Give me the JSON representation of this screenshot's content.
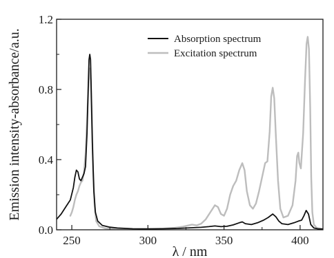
{
  "chart_data": {
    "type": "line",
    "xlabel": "λ / nm",
    "ylabel": "Emission intensity-absorbance/a.u.",
    "xlim": [
      240,
      415
    ],
    "ylim": [
      0,
      1.2
    ],
    "x_ticks": [
      250,
      300,
      350,
      400
    ],
    "x_tick_labels": [
      "250",
      "300",
      "350",
      "400"
    ],
    "y_ticks": [
      0.0,
      0.4,
      0.8,
      1.2
    ],
    "y_tick_labels": [
      "0.0",
      "0.4",
      "0.8",
      "1.2"
    ],
    "grid": false,
    "legend_position": "top-right",
    "series": [
      {
        "name": "Absorption spectrum",
        "color": "#111111",
        "points": [
          [
            240,
            0.06
          ],
          [
            243,
            0.09
          ],
          [
            246,
            0.13
          ],
          [
            249,
            0.17
          ],
          [
            251,
            0.24
          ],
          [
            252,
            0.3
          ],
          [
            253,
            0.34
          ],
          [
            254,
            0.33
          ],
          [
            255,
            0.29
          ],
          [
            256,
            0.28
          ],
          [
            257,
            0.3
          ],
          [
            258,
            0.32
          ],
          [
            259,
            0.36
          ],
          [
            260,
            0.55
          ],
          [
            260.8,
            0.82
          ],
          [
            261.3,
            0.97
          ],
          [
            261.8,
            1.0
          ],
          [
            262.3,
            0.97
          ],
          [
            262.8,
            0.78
          ],
          [
            263.5,
            0.5
          ],
          [
            264.5,
            0.22
          ],
          [
            265.5,
            0.1
          ],
          [
            267,
            0.05
          ],
          [
            270,
            0.025
          ],
          [
            275,
            0.015
          ],
          [
            280,
            0.01
          ],
          [
            290,
            0.006
          ],
          [
            300,
            0.005
          ],
          [
            310,
            0.006
          ],
          [
            320,
            0.008
          ],
          [
            330,
            0.012
          ],
          [
            335,
            0.014
          ],
          [
            340,
            0.018
          ],
          [
            344,
            0.022
          ],
          [
            348,
            0.018
          ],
          [
            352,
            0.02
          ],
          [
            356,
            0.028
          ],
          [
            360,
            0.04
          ],
          [
            362,
            0.045
          ],
          [
            364,
            0.035
          ],
          [
            368,
            0.03
          ],
          [
            372,
            0.04
          ],
          [
            376,
            0.055
          ],
          [
            379,
            0.07
          ],
          [
            382,
            0.09
          ],
          [
            384,
            0.075
          ],
          [
            386,
            0.05
          ],
          [
            388,
            0.035
          ],
          [
            392,
            0.03
          ],
          [
            396,
            0.04
          ],
          [
            399,
            0.05
          ],
          [
            401,
            0.055
          ],
          [
            402.5,
            0.08
          ],
          [
            404,
            0.11
          ],
          [
            405.5,
            0.09
          ],
          [
            407,
            0.03
          ],
          [
            409,
            0.01
          ],
          [
            412,
            0.005
          ],
          [
            415,
            0.004
          ]
        ]
      },
      {
        "name": "Excitation spectrum",
        "color": "#bdbdbd",
        "points": [
          [
            249,
            0.08
          ],
          [
            250,
            0.1
          ],
          [
            251,
            0.13
          ],
          [
            252,
            0.17
          ],
          [
            253,
            0.2
          ],
          [
            254,
            0.22
          ],
          [
            255,
            0.25
          ],
          [
            256,
            0.27
          ],
          [
            257,
            0.28
          ],
          [
            258,
            0.33
          ],
          [
            259,
            0.43
          ],
          [
            260,
            0.62
          ],
          [
            261,
            0.83
          ],
          [
            261.8,
            0.92
          ],
          [
            262.5,
            0.85
          ],
          [
            263.2,
            0.62
          ],
          [
            264,
            0.34
          ],
          [
            265,
            0.14
          ],
          [
            266,
            0.05
          ],
          [
            268,
            0.02
          ],
          [
            272,
            0.008
          ],
          [
            280,
            0.004
          ],
          [
            290,
            0.003
          ],
          [
            300,
            0.004
          ],
          [
            310,
            0.007
          ],
          [
            318,
            0.012
          ],
          [
            323,
            0.018
          ],
          [
            326,
            0.024
          ],
          [
            329,
            0.03
          ],
          [
            332,
            0.025
          ],
          [
            335,
            0.035
          ],
          [
            338,
            0.06
          ],
          [
            341,
            0.1
          ],
          [
            344,
            0.14
          ],
          [
            346,
            0.13
          ],
          [
            348,
            0.09
          ],
          [
            350,
            0.08
          ],
          [
            352,
            0.12
          ],
          [
            354,
            0.2
          ],
          [
            356,
            0.25
          ],
          [
            358,
            0.28
          ],
          [
            360,
            0.34
          ],
          [
            362,
            0.38
          ],
          [
            363.5,
            0.34
          ],
          [
            365,
            0.22
          ],
          [
            367,
            0.14
          ],
          [
            369,
            0.12
          ],
          [
            371,
            0.15
          ],
          [
            373,
            0.22
          ],
          [
            375,
            0.3
          ],
          [
            377,
            0.38
          ],
          [
            378.5,
            0.39
          ],
          [
            380,
            0.56
          ],
          [
            381,
            0.76
          ],
          [
            382,
            0.81
          ],
          [
            383,
            0.75
          ],
          [
            384,
            0.55
          ],
          [
            385.5,
            0.28
          ],
          [
            387,
            0.12
          ],
          [
            389,
            0.07
          ],
          [
            392,
            0.08
          ],
          [
            395,
            0.14
          ],
          [
            397,
            0.28
          ],
          [
            398,
            0.42
          ],
          [
            398.8,
            0.44
          ],
          [
            399.5,
            0.38
          ],
          [
            400.5,
            0.35
          ],
          [
            402,
            0.55
          ],
          [
            403.2,
            0.85
          ],
          [
            404.2,
            1.06
          ],
          [
            405,
            1.1
          ],
          [
            405.8,
            1.03
          ],
          [
            406.6,
            0.7
          ],
          [
            407.3,
            0.3
          ],
          [
            408,
            0.1
          ],
          [
            409,
            0.03
          ],
          [
            411,
            0.01
          ],
          [
            415,
            0.005
          ]
        ]
      }
    ]
  }
}
